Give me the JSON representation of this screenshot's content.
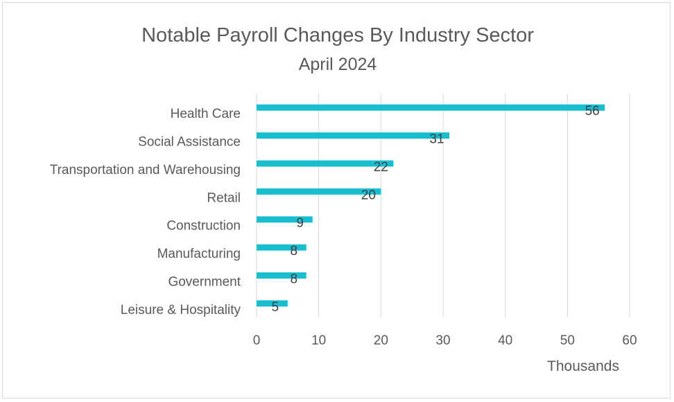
{
  "chart_data": {
    "type": "bar",
    "orientation": "horizontal",
    "title": "Notable Payroll Changes By Industry Sector",
    "subtitle": "April 2024",
    "xlabel": "Thousands",
    "ylabel": "",
    "categories": [
      "Health Care",
      "Social Assistance",
      "Transportation and Warehousing",
      "Retail",
      "Construction",
      "Manufacturing",
      "Government",
      "Leisure & Hospitality"
    ],
    "values": [
      56,
      31,
      22,
      20,
      9,
      8,
      8,
      5
    ],
    "data_labels": [
      "56",
      "31",
      "22",
      "20",
      "9",
      "8",
      "8",
      "5"
    ],
    "xlim": [
      0,
      60
    ],
    "xticks": [
      "0",
      "10",
      "20",
      "30",
      "40",
      "50",
      "60"
    ],
    "grid": "vertical",
    "legend": "none",
    "colors": {
      "bar": "#17BECF",
      "grid": "#d9d9d9",
      "text": "#595959"
    }
  }
}
